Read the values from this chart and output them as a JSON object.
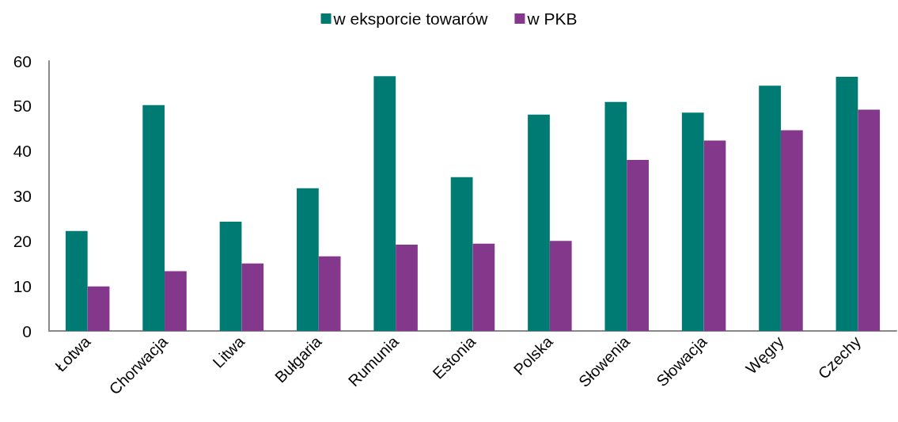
{
  "chart_data": {
    "type": "bar",
    "categories": [
      "Łotwa",
      "Chorwacja",
      "Litwa",
      "Bułgaria",
      "Rumunia",
      "Estonia",
      "Polska",
      "Słowenia",
      "Słowacja",
      "Węgry",
      "Czechy"
    ],
    "series": [
      {
        "name": "w eksporcie towarów",
        "color": "#007b73",
        "values": [
          22.2,
          50.2,
          24.3,
          31.7,
          56.6,
          34.2,
          48.1,
          50.9,
          48.5,
          54.5,
          56.5
        ]
      },
      {
        "name": "w PKB",
        "color": "#84388b",
        "values": [
          9.9,
          13.3,
          15.0,
          16.6,
          19.2,
          19.4,
          20.0,
          38.0,
          42.3,
          44.6,
          49.2
        ]
      }
    ],
    "ylim": [
      0,
      60
    ],
    "yticks": [
      0,
      10,
      20,
      30,
      40,
      50,
      60
    ],
    "legend": "top"
  }
}
